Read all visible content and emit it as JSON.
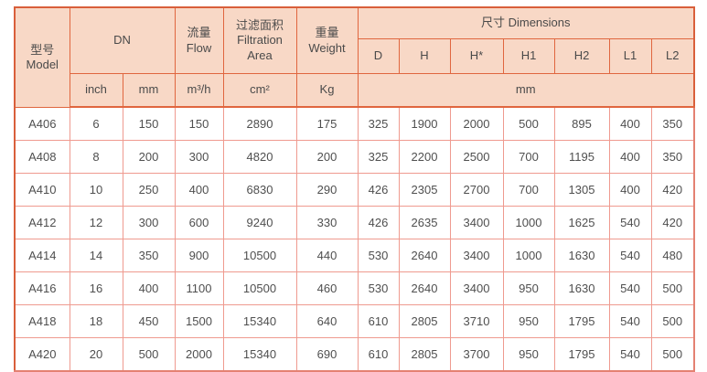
{
  "colors": {
    "header_bg": "#f8d8c6",
    "border_strong": "#e0663f",
    "border_light": "#ef9a8f",
    "text": "#4f4f4f"
  },
  "table": {
    "header": {
      "model": "型号\nModel",
      "dn": "DN",
      "flow": "流量\nFlow",
      "filtration_area": "过滤面积\nFiltration\nArea",
      "weight": "重量\nWeight",
      "dimensions": "尺寸 Dimensions",
      "dim_cols": [
        "D",
        "H",
        "H*",
        "H1",
        "H2",
        "L1",
        "L2"
      ],
      "units": {
        "dn_inch": "inch",
        "dn_mm": "mm",
        "flow": "m³/h",
        "filtration_area": "cm²",
        "weight": "Kg",
        "dimensions": "mm"
      }
    },
    "rows": [
      {
        "model": "A406",
        "values": [
          "6",
          "150",
          "150",
          "2890",
          "175",
          "325",
          "1900",
          "2000",
          "500",
          "895",
          "400",
          "350"
        ]
      },
      {
        "model": "A408",
        "values": [
          "8",
          "200",
          "300",
          "4820",
          "200",
          "325",
          "2200",
          "2500",
          "700",
          "1195",
          "400",
          "350"
        ]
      },
      {
        "model": "A410",
        "values": [
          "10",
          "250",
          "400",
          "6830",
          "290",
          "426",
          "2305",
          "2700",
          "700",
          "1305",
          "400",
          "420"
        ]
      },
      {
        "model": "A412",
        "values": [
          "12",
          "300",
          "600",
          "9240",
          "330",
          "426",
          "2635",
          "3400",
          "1000",
          "1625",
          "540",
          "420"
        ]
      },
      {
        "model": "A414",
        "values": [
          "14",
          "350",
          "900",
          "10500",
          "440",
          "530",
          "2640",
          "3400",
          "1000",
          "1630",
          "540",
          "480"
        ]
      },
      {
        "model": "A416",
        "values": [
          "16",
          "400",
          "1100",
          "10500",
          "460",
          "530",
          "2640",
          "3400",
          "950",
          "1630",
          "540",
          "500"
        ]
      },
      {
        "model": "A418",
        "values": [
          "18",
          "450",
          "1500",
          "15340",
          "640",
          "610",
          "2805",
          "3710",
          "950",
          "1795",
          "540",
          "500"
        ]
      },
      {
        "model": "A420",
        "values": [
          "20",
          "500",
          "2000",
          "15340",
          "690",
          "610",
          "2805",
          "3700",
          "950",
          "1795",
          "540",
          "500"
        ]
      }
    ]
  }
}
